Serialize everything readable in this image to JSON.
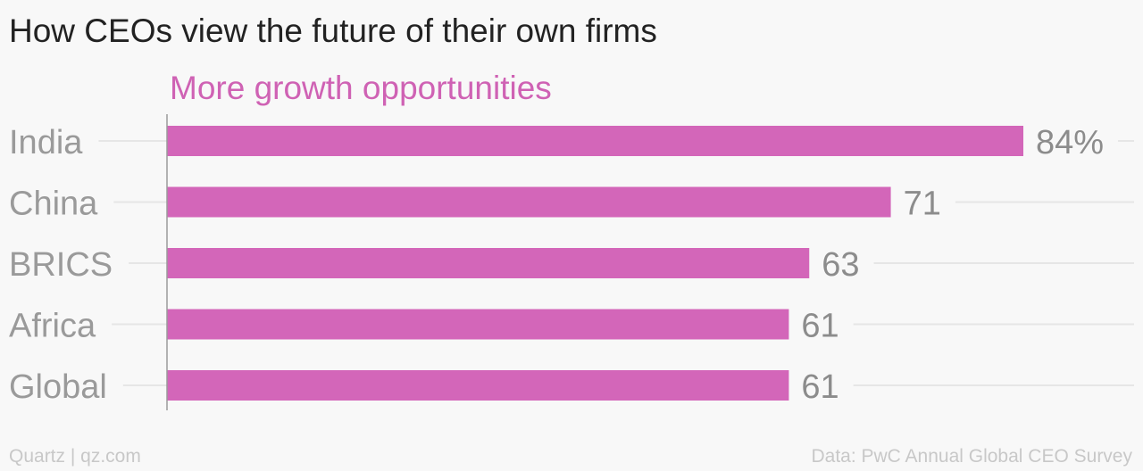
{
  "header": {
    "title": "How CEOs view the future of their own firms"
  },
  "chart_data": {
    "type": "bar",
    "orientation": "horizontal",
    "title": "How CEOs view the future of their own firms",
    "categories": [
      "India",
      "China",
      "BRICS",
      "Africa",
      "Global"
    ],
    "series": [
      {
        "name": "More growth opportunities",
        "values": [
          84,
          71,
          63,
          61,
          61
        ],
        "value_labels": [
          "84%",
          "71",
          "63",
          "61",
          "61"
        ]
      }
    ],
    "xlim": [
      0,
      90
    ],
    "grid": true,
    "colors": {
      "bar": "#d366b9",
      "series_label": "#cf62b4",
      "category_label": "#9a9a9a",
      "value_label": "#8c8c8c",
      "gridline": "#e6e6e6",
      "axis": "#9a9a9a"
    }
  },
  "footer": {
    "source_left": "Quartz | qz.com",
    "source_right": "Data: PwC Annual Global CEO Survey"
  }
}
